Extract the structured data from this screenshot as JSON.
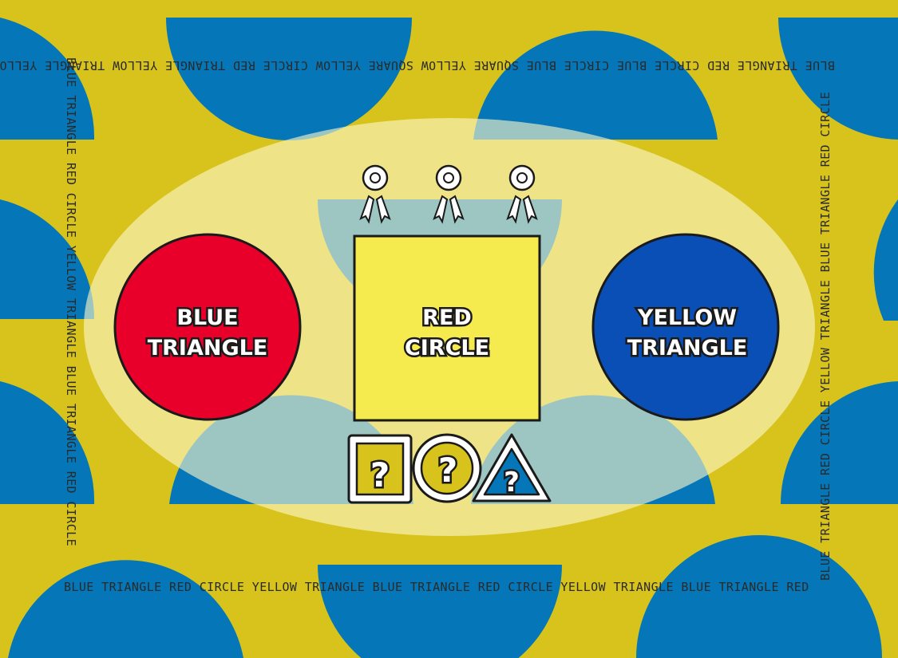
{
  "colors": {
    "background": "#d8c31c",
    "pattern_blue": "#0577b8",
    "oval": "#fbf7c8",
    "red_circle": "#e8002b",
    "blue_circle": "#0a4fb5",
    "yellow_square": "#f5ea4e"
  },
  "border_text": {
    "top": "BLUE TRIANGLE RED CIRCLE BLUE CIRCLE BLUE SQUARE YELLOW SQUARE YELLOW CIRCLE RED TRIANGLE YELLOW TRIANGLE YELLOW CIRCLE RED TRIANGLE BLUE",
    "bottom": "BLUE TRIANGLE RED CIRCLE YELLOW TRIANGLE BLUE TRIANGLE RED CIRCLE YELLOW TRIANGLE BLUE TRIANGLE RED",
    "left": "BLUE TRIANGLE RED CIRCLE YELLOW TRIANGLE BLUE TRIANGLE RED CIRCLE",
    "right": "BLUE TRIANGLE RED CIRCLE YELLOW TRIANGLE BLUE TRIANGLE RED CIRCLE"
  },
  "cards": {
    "left": {
      "line1": "BLUE",
      "line2": "TRIANGLE"
    },
    "center": {
      "line1": "RED",
      "line2": "CIRCLE"
    },
    "right": {
      "line1": "YELLOW",
      "line2": "TRIANGLE"
    }
  },
  "ribbons": [
    "ribbon-icon",
    "ribbon-icon",
    "ribbon-icon"
  ],
  "choices": [
    {
      "shape": "square",
      "symbol": "?"
    },
    {
      "shape": "circle",
      "symbol": "?"
    },
    {
      "shape": "triangle",
      "symbol": "?"
    }
  ]
}
